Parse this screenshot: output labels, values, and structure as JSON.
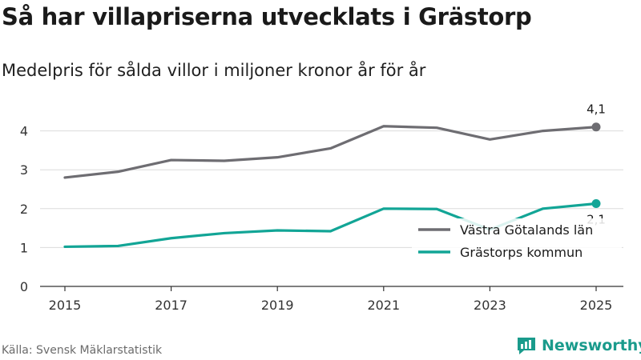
{
  "title": "Så har villapriserna utvecklats i Grästorp",
  "subtitle": "Medelpris för sålda villor i miljoner kronor år för år",
  "source": "Källa: Svensk Mäklarstatistik",
  "brand": {
    "name": "Newsworthy",
    "icon": "newsworthy-logo-icon",
    "color": "#1a9b8c"
  },
  "chart_data": {
    "type": "line",
    "x": [
      2015,
      2016,
      2017,
      2018,
      2019,
      2020,
      2021,
      2022,
      2023,
      2024,
      2025
    ],
    "x_tick_labels": [
      "2015",
      "2017",
      "2019",
      "2021",
      "2023",
      "2025"
    ],
    "y_tick_labels": [
      "0",
      "1",
      "2",
      "3",
      "4"
    ],
    "ylim": [
      0,
      4.5
    ],
    "grid": true,
    "legend_position": "bottom-right",
    "series": [
      {
        "name": "Västra Götalands län",
        "color": "#6e6d72",
        "values": [
          2.8,
          2.95,
          3.25,
          3.23,
          3.32,
          3.55,
          4.12,
          4.08,
          3.78,
          4.0,
          4.1
        ],
        "end_label": "4,1"
      },
      {
        "name": "Grästorps kommun",
        "color": "#12a596",
        "values": [
          1.02,
          1.04,
          1.24,
          1.37,
          1.44,
          1.42,
          2.0,
          1.99,
          1.46,
          2.0,
          2.13
        ],
        "end_label": "2,1"
      }
    ]
  }
}
